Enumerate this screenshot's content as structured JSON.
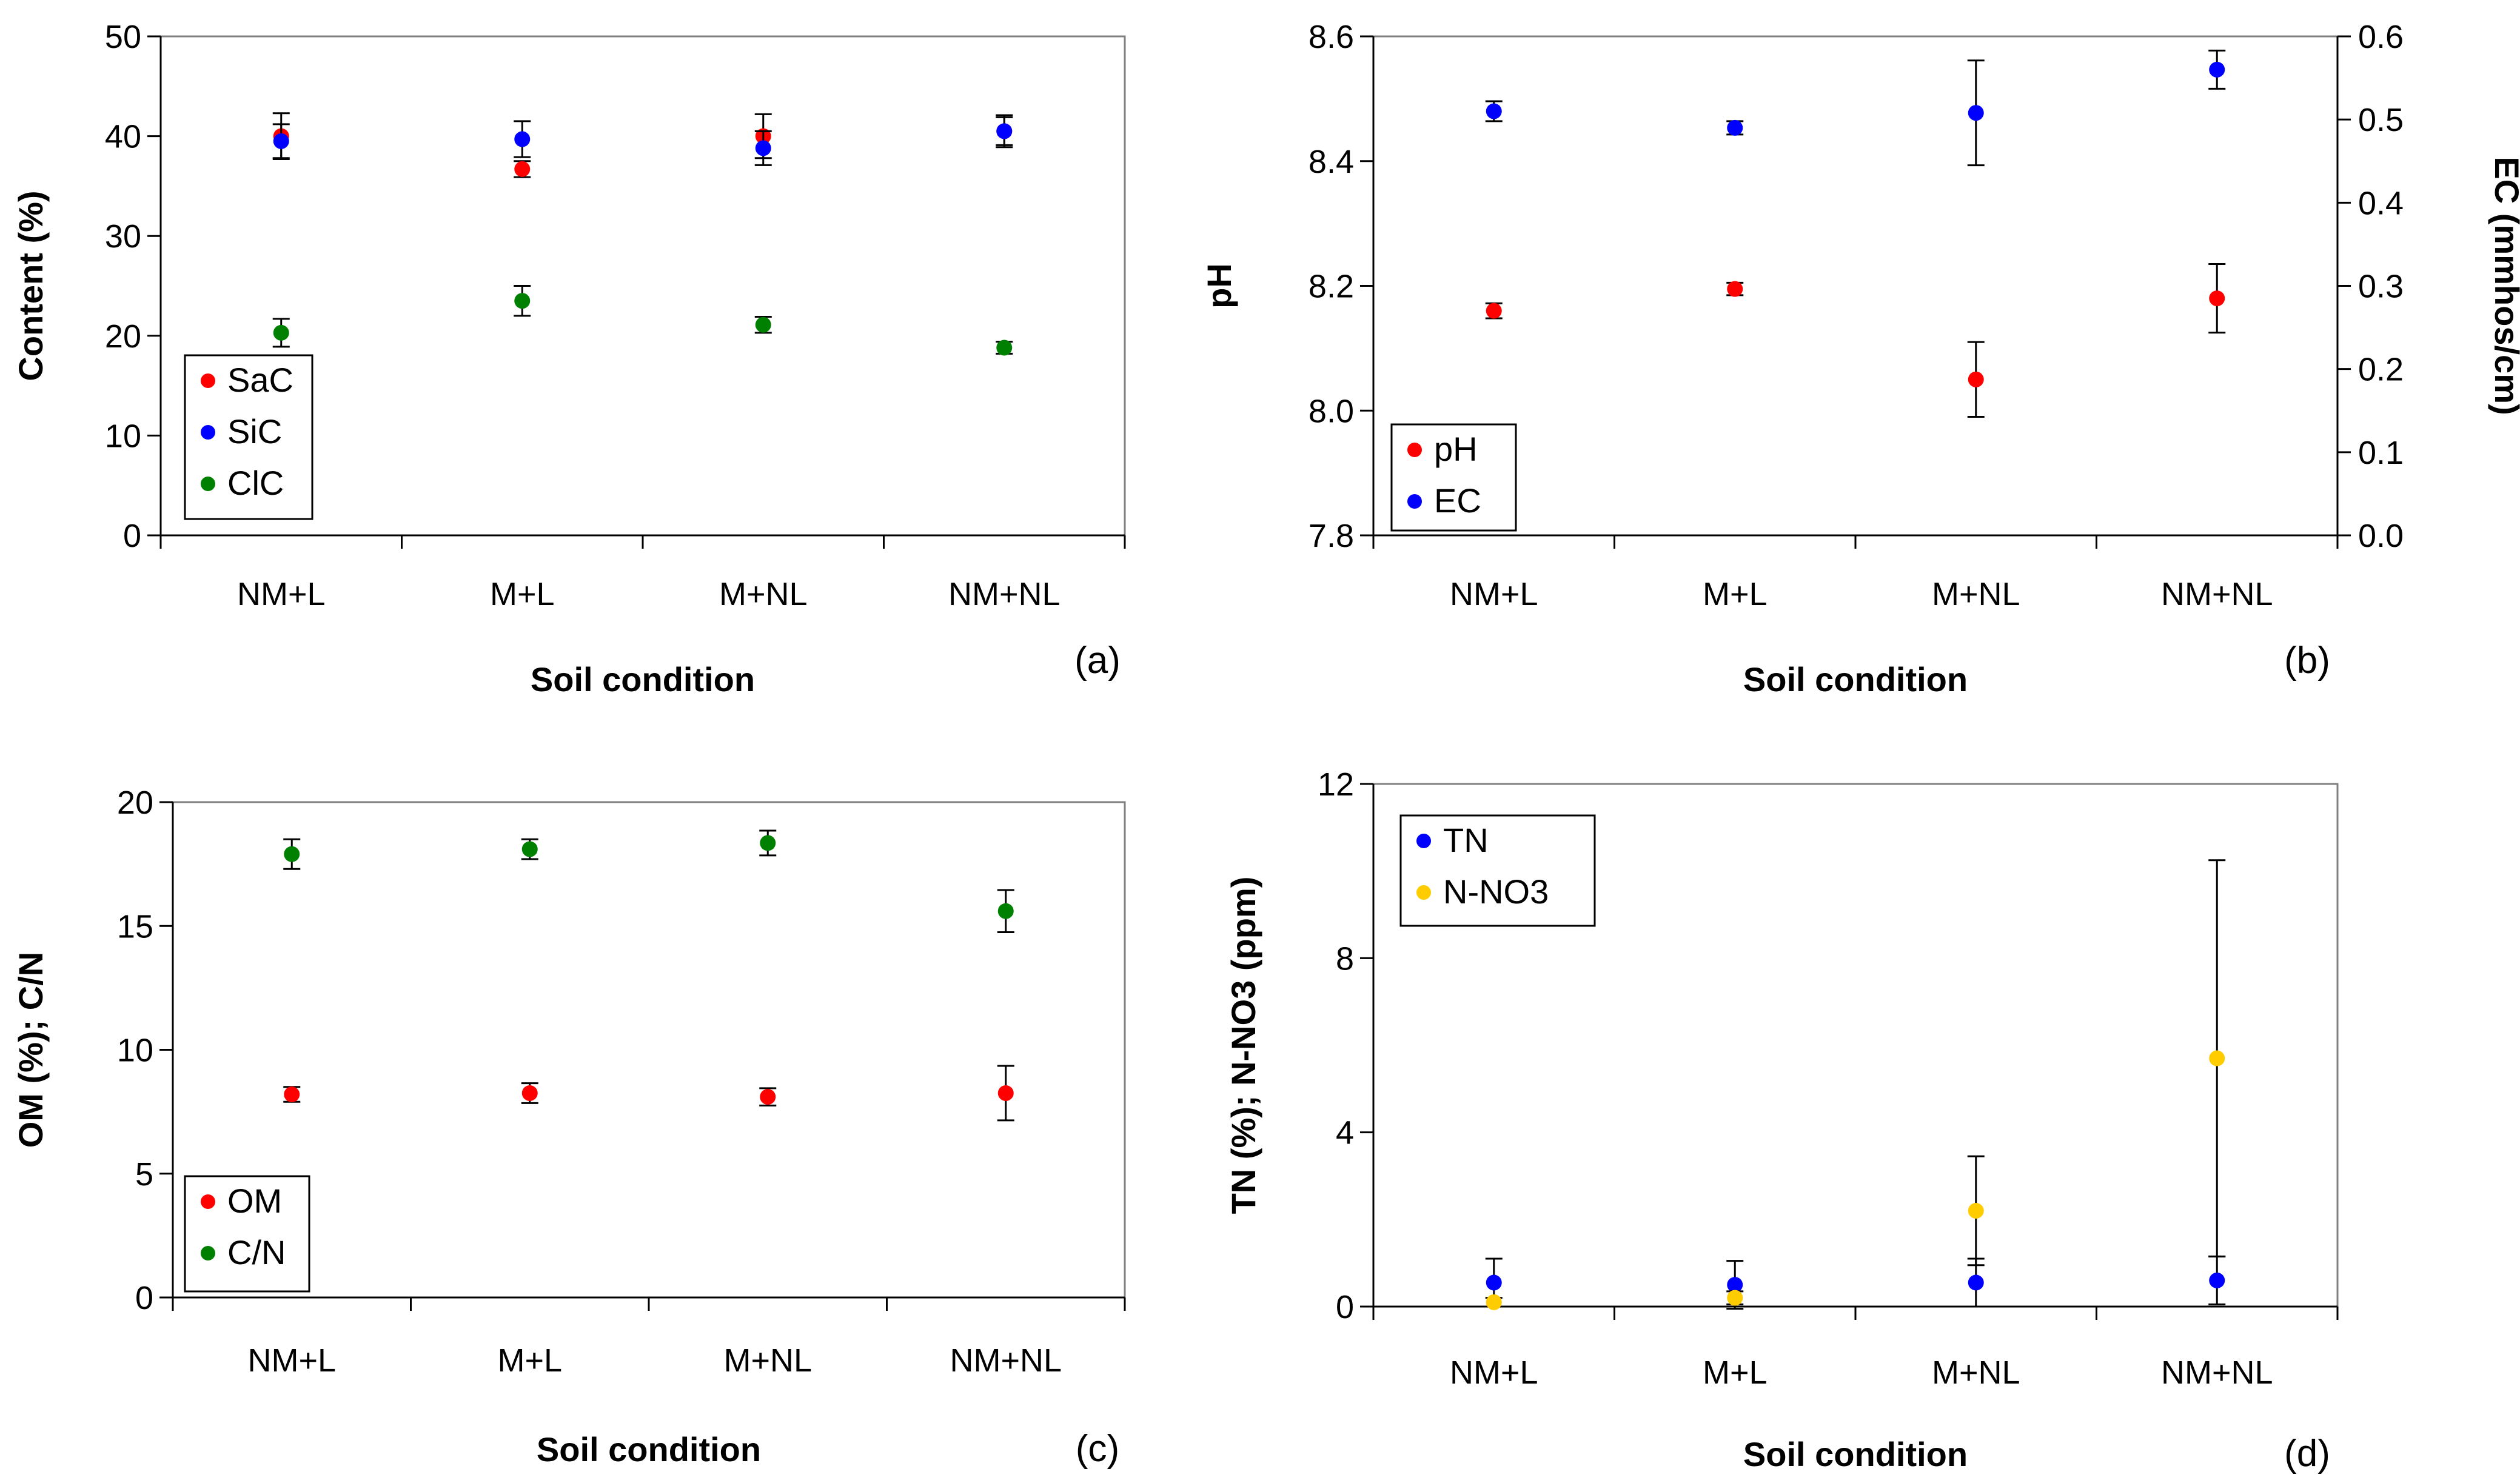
{
  "chart_data": [
    {
      "type": "scatter",
      "panel_label": "(a)",
      "xlabel": "Soil condition",
      "ylabel": "Content (%)",
      "categories": [
        "NM+L",
        "M+L",
        "M+NL",
        "NM+NL"
      ],
      "ylim": [
        0,
        50
      ],
      "yticks": [
        "0",
        "10",
        "20",
        "30",
        "40",
        "50"
      ],
      "legend_position": "bottom-left",
      "series": [
        {
          "name": "SaC",
          "color": "#ff0000",
          "values": [
            40.0,
            36.7,
            40.0,
            40.5
          ],
          "errors": [
            2.3,
            0.8,
            2.2,
            1.6
          ]
        },
        {
          "name": "SiC",
          "color": "#0000ff",
          "values": [
            39.5,
            39.7,
            38.8,
            40.5
          ],
          "errors": [
            1.7,
            1.8,
            1.7,
            1.4
          ]
        },
        {
          "name": "ClC",
          "color": "#008000",
          "values": [
            20.3,
            23.5,
            21.1,
            18.8
          ],
          "errors": [
            1.4,
            1.5,
            0.8,
            0.6
          ]
        }
      ]
    },
    {
      "type": "scatter",
      "panel_label": "(b)",
      "xlabel": "Soil condition",
      "ylabel": "pH",
      "ylabel_right": "EC (mmhos/cm)",
      "categories": [
        "NM+L",
        "M+L",
        "M+NL",
        "NM+NL"
      ],
      "ylim": [
        7.8,
        8.6
      ],
      "yticks": [
        "7.8",
        "8.0",
        "8.2",
        "8.4",
        "8.6"
      ],
      "ylim_right": [
        0.0,
        0.6
      ],
      "yticks_right": [
        "0.0",
        "0.1",
        "0.2",
        "0.3",
        "0.4",
        "0.5",
        "0.6"
      ],
      "legend_position": "bottom-left",
      "series": [
        {
          "name": "pH",
          "color": "#ff0000",
          "axis": "left",
          "values": [
            8.16,
            8.195,
            8.05,
            8.18
          ],
          "errors": [
            0.012,
            0.01,
            0.06,
            0.055
          ]
        },
        {
          "name": "EC",
          "color": "#0000ff",
          "axis": "right",
          "values": [
            0.51,
            0.49,
            0.508,
            0.56
          ],
          "errors": [
            0.012,
            0.008,
            0.063,
            0.023
          ]
        }
      ]
    },
    {
      "type": "scatter",
      "panel_label": "(c)",
      "xlabel": "Soil condition",
      "ylabel": "OM (%); C/N",
      "categories": [
        "NM+L",
        "M+L",
        "M+NL",
        "NM+NL"
      ],
      "ylim": [
        0,
        20
      ],
      "yticks": [
        "0",
        "5",
        "10",
        "15",
        "20"
      ],
      "legend_position": "bottom-left",
      "series": [
        {
          "name": "OM",
          "color": "#ff0000",
          "values": [
            8.2,
            8.25,
            8.1,
            8.25
          ],
          "errors": [
            0.3,
            0.4,
            0.35,
            1.1
          ]
        },
        {
          "name": "C/N",
          "color": "#008000",
          "values": [
            17.9,
            18.1,
            18.35,
            15.6
          ],
          "errors": [
            0.6,
            0.4,
            0.5,
            0.85
          ]
        }
      ]
    },
    {
      "type": "scatter",
      "panel_label": "(d)",
      "xlabel": "Soil condition",
      "ylabel": "TN (%); N-NO3 (ppm)",
      "categories": [
        "NM+L",
        "M+L",
        "M+NL",
        "NM+NL"
      ],
      "ylim": [
        0,
        12
      ],
      "yticks": [
        "0",
        "4",
        "8",
        "12"
      ],
      "legend_position": "top-left",
      "series": [
        {
          "name": "TN",
          "color": "#0000ff",
          "values": [
            0.55,
            0.5,
            0.55,
            0.6
          ],
          "errors": [
            0.55,
            0.55,
            0.55,
            0.55
          ]
        },
        {
          "name": "N-NO3",
          "color": "#ffcc00",
          "values": [
            0.1,
            0.2,
            2.2,
            5.7
          ],
          "errors": [
            0.1,
            0.15,
            1.25,
            4.55
          ]
        }
      ]
    }
  ]
}
